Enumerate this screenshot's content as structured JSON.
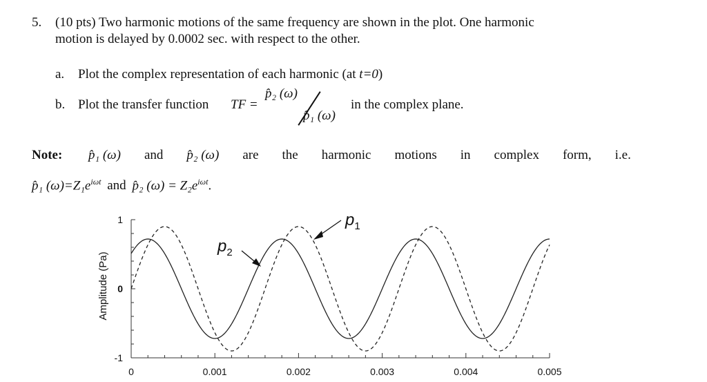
{
  "problem": {
    "number": "5.",
    "line1": "(10 pts) Two harmonic motions of the same frequency are shown in the plot. One harmonic",
    "line2": "motion is delayed by 0.0002 sec. with respect to the other."
  },
  "parts": {
    "a_label": "a.",
    "a_text_pre": "Plot the complex representation of each harmonic (at ",
    "a_text_var": "t=0",
    "a_text_post": ")",
    "b_label": "b.",
    "b_text_pre": "Plot the transfer function ",
    "b_tf": "TF",
    "b_eq": "=",
    "b_num": "p̂₂ (ω)",
    "b_den": "p̂₁ (ω)",
    "b_text_post": "in the complex plane."
  },
  "note": {
    "label": "Note:",
    "line1_words": [
      "p̂₁ (ω)",
      "and",
      "p̂₂ (ω)",
      "are",
      "the",
      "harmonic",
      "motions",
      "in",
      "complex",
      "form,",
      "i.e."
    ],
    "line2_p1": "p̂₁ (ω)=Z₁e",
    "line2_p1_sup": "iωt",
    "line2_and": "and",
    "line2_p2": "p̂₂ (ω) = Z₂e",
    "line2_p2_sup": "iωt",
    "line2_end": "."
  },
  "chart_data": {
    "type": "line",
    "ylabel": "Amplitude (Pa)",
    "xlim": [
      0,
      0.005
    ],
    "ylim": [
      -1,
      1
    ],
    "x_ticks": [
      "0",
      "0.001",
      "0.002",
      "0.003",
      "0.004",
      "0.005"
    ],
    "y_ticks": [
      "1",
      "0",
      "-1"
    ],
    "period": 0.0016,
    "delay": 0.0002,
    "series": [
      {
        "name": "p1",
        "style": "dashed",
        "amplitude": 0.9,
        "phase_offset": 0.0004
      },
      {
        "name": "p2",
        "style": "solid",
        "amplitude": 0.72,
        "phase_offset": 0.0002
      }
    ],
    "annotations": [
      {
        "label": "p1",
        "subscript": "1",
        "text": "p"
      },
      {
        "label": "p2",
        "subscript": "2",
        "text": "p"
      }
    ]
  }
}
